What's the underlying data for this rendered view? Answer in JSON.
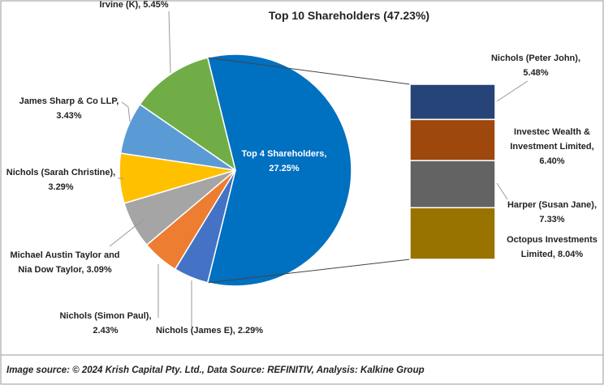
{
  "chart_data": [
    {
      "type": "pie",
      "title": "Top 10 Shareholders (47.23%)",
      "labels": [
        [
          "Top 4 Shareholders,",
          "27.25%"
        ],
        [
          "Nichols (James E), 2.29%"
        ],
        [
          "Nichols (Simon Paul),",
          "2.43%"
        ],
        [
          "Michael Austin Taylor and",
          "Nia Dow Taylor, 3.09%"
        ],
        [
          "Nichols (Sarah Christine),",
          "3.29%"
        ],
        [
          "James Sharp & Co LLP,",
          "3.43%"
        ],
        [
          "Irvine (K), 5.45%"
        ]
      ],
      "values": [
        27.25,
        2.29,
        2.43,
        3.09,
        3.29,
        3.43,
        5.45
      ],
      "colors": [
        "#0070c0",
        "#4472c4",
        "#ed7d31",
        "#a5a5a5",
        "#ffc000",
        "#5b9bd5",
        "#70ad47"
      ]
    },
    {
      "type": "bar",
      "labels": [
        [
          "Nichols (Peter John),",
          "5.48%"
        ],
        [
          "Investec Wealth &",
          "Investment Limited,",
          "6.40%"
        ],
        [
          "Harper (Susan Jane),",
          "7.33%"
        ],
        [
          "Octopus Investments",
          "Limited, 8.04%"
        ]
      ],
      "values": [
        5.48,
        6.4,
        7.33,
        8.04
      ],
      "colors": [
        "#264478",
        "#9e480e",
        "#636363",
        "#997300"
      ]
    }
  ],
  "footer": "Image source: © 2024 Krish Capital Pty. Ltd., Data Source: REFINITIV, Analysis: Kalkine Group"
}
